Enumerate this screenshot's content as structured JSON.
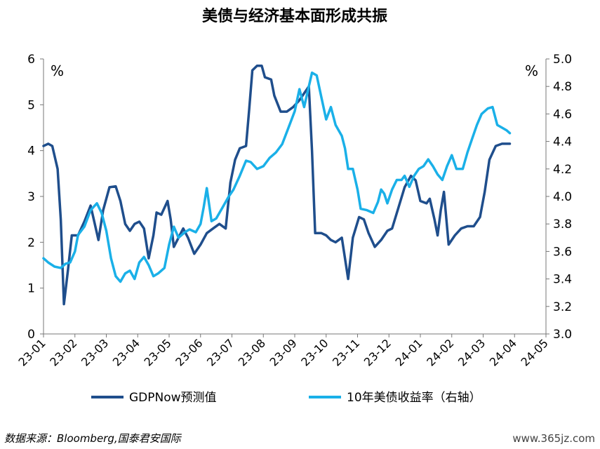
{
  "chart_data": {
    "type": "line",
    "title": "美债与经济基本面形成共振",
    "unit_left": "%",
    "unit_right": "%",
    "y_left_range": [
      0,
      6
    ],
    "y_left_ticks": [
      "0",
      "1",
      "2",
      "3",
      "4",
      "5",
      "6"
    ],
    "y_right_range": [
      3.0,
      5.0
    ],
    "y_right_ticks": [
      "3.0",
      "3.2",
      "3.4",
      "3.6",
      "3.8",
      "4.0",
      "4.2",
      "4.4",
      "4.6",
      "4.8",
      "5.0"
    ],
    "x_range": [
      0,
      16
    ],
    "x_tick_labels": [
      "23-01",
      "23-02",
      "23-03",
      "23-04",
      "23-05",
      "23-06",
      "23-07",
      "23-08",
      "23-09",
      "23-10",
      "23-11",
      "23-12",
      "24-01",
      "24-02",
      "24-03",
      "24-04",
      "24-05"
    ],
    "grid": false,
    "legend_position": "bottom",
    "series": [
      {
        "name": "GDPNow预测值",
        "axis": "left",
        "color": "#1f4e8c",
        "points": [
          [
            0,
            4.1
          ],
          [
            0.15,
            4.15
          ],
          [
            0.28,
            4.1
          ],
          [
            0.45,
            3.6
          ],
          [
            0.55,
            2.5
          ],
          [
            0.65,
            0.65
          ],
          [
            0.78,
            1.4
          ],
          [
            0.9,
            2.15
          ],
          [
            1.1,
            2.15
          ],
          [
            1.3,
            2.45
          ],
          [
            1.5,
            2.8
          ],
          [
            1.6,
            2.5
          ],
          [
            1.75,
            2.05
          ],
          [
            1.9,
            2.7
          ],
          [
            2.1,
            3.2
          ],
          [
            2.3,
            3.22
          ],
          [
            2.45,
            2.9
          ],
          [
            2.6,
            2.4
          ],
          [
            2.75,
            2.25
          ],
          [
            2.9,
            2.4
          ],
          [
            3.05,
            2.45
          ],
          [
            3.2,
            2.3
          ],
          [
            3.35,
            1.65
          ],
          [
            3.5,
            2.15
          ],
          [
            3.6,
            2.65
          ],
          [
            3.75,
            2.6
          ],
          [
            3.95,
            2.9
          ],
          [
            4.05,
            2.5
          ],
          [
            4.15,
            1.9
          ],
          [
            4.3,
            2.1
          ],
          [
            4.45,
            2.3
          ],
          [
            4.6,
            2.1
          ],
          [
            4.8,
            1.75
          ],
          [
            5.0,
            1.95
          ],
          [
            5.2,
            2.2
          ],
          [
            5.4,
            2.3
          ],
          [
            5.6,
            2.4
          ],
          [
            5.8,
            2.3
          ],
          [
            5.95,
            3.3
          ],
          [
            6.1,
            3.8
          ],
          [
            6.25,
            4.05
          ],
          [
            6.45,
            4.1
          ],
          [
            6.55,
            4.9
          ],
          [
            6.65,
            5.75
          ],
          [
            6.8,
            5.85
          ],
          [
            6.95,
            5.85
          ],
          [
            7.05,
            5.6
          ],
          [
            7.25,
            5.55
          ],
          [
            7.35,
            5.2
          ],
          [
            7.55,
            4.85
          ],
          [
            7.75,
            4.85
          ],
          [
            7.95,
            4.95
          ],
          [
            8.15,
            5.1
          ],
          [
            8.3,
            5.25
          ],
          [
            8.45,
            5.4
          ],
          [
            8.55,
            4.0
          ],
          [
            8.65,
            2.2
          ],
          [
            8.85,
            2.2
          ],
          [
            9.0,
            2.15
          ],
          [
            9.15,
            2.05
          ],
          [
            9.3,
            2.0
          ],
          [
            9.5,
            2.1
          ],
          [
            9.6,
            1.65
          ],
          [
            9.7,
            1.2
          ],
          [
            9.85,
            2.1
          ],
          [
            10.05,
            2.55
          ],
          [
            10.2,
            2.5
          ],
          [
            10.35,
            2.2
          ],
          [
            10.55,
            1.9
          ],
          [
            10.75,
            2.05
          ],
          [
            10.95,
            2.25
          ],
          [
            11.1,
            2.3
          ],
          [
            11.3,
            2.75
          ],
          [
            11.5,
            3.2
          ],
          [
            11.7,
            3.45
          ],
          [
            11.85,
            3.35
          ],
          [
            12.0,
            2.9
          ],
          [
            12.2,
            2.85
          ],
          [
            12.3,
            2.95
          ],
          [
            12.45,
            2.5
          ],
          [
            12.55,
            2.15
          ],
          [
            12.65,
            2.7
          ],
          [
            12.75,
            3.1
          ],
          [
            12.9,
            1.95
          ],
          [
            13.1,
            2.15
          ],
          [
            13.3,
            2.3
          ],
          [
            13.5,
            2.35
          ],
          [
            13.7,
            2.35
          ],
          [
            13.9,
            2.55
          ],
          [
            14.05,
            3.1
          ],
          [
            14.2,
            3.8
          ],
          [
            14.4,
            4.1
          ],
          [
            14.6,
            4.15
          ],
          [
            14.75,
            4.15
          ],
          [
            14.85,
            4.15
          ]
        ]
      },
      {
        "name": "10年美债收益率（右轴）",
        "axis": "right",
        "color": "#1ab0e8",
        "points": [
          [
            0,
            3.55
          ],
          [
            0.15,
            3.52
          ],
          [
            0.35,
            3.49
          ],
          [
            0.55,
            3.48
          ],
          [
            0.7,
            3.51
          ],
          [
            0.85,
            3.52
          ],
          [
            1.0,
            3.6
          ],
          [
            1.1,
            3.72
          ],
          [
            1.3,
            3.78
          ],
          [
            1.5,
            3.9
          ],
          [
            1.7,
            3.95
          ],
          [
            1.85,
            3.88
          ],
          [
            2.0,
            3.75
          ],
          [
            2.15,
            3.55
          ],
          [
            2.3,
            3.42
          ],
          [
            2.45,
            3.38
          ],
          [
            2.6,
            3.44
          ],
          [
            2.75,
            3.46
          ],
          [
            2.9,
            3.4
          ],
          [
            3.05,
            3.52
          ],
          [
            3.2,
            3.56
          ],
          [
            3.35,
            3.5
          ],
          [
            3.5,
            3.42
          ],
          [
            3.65,
            3.44
          ],
          [
            3.85,
            3.48
          ],
          [
            4.0,
            3.65
          ],
          [
            4.15,
            3.78
          ],
          [
            4.3,
            3.7
          ],
          [
            4.5,
            3.74
          ],
          [
            4.65,
            3.76
          ],
          [
            4.85,
            3.74
          ],
          [
            5.0,
            3.8
          ],
          [
            5.1,
            3.92
          ],
          [
            5.2,
            4.06
          ],
          [
            5.35,
            3.82
          ],
          [
            5.5,
            3.84
          ],
          [
            5.7,
            3.92
          ],
          [
            5.9,
            4.0
          ],
          [
            6.05,
            4.05
          ],
          [
            6.25,
            4.15
          ],
          [
            6.45,
            4.26
          ],
          [
            6.6,
            4.25
          ],
          [
            6.8,
            4.2
          ],
          [
            7.0,
            4.22
          ],
          [
            7.2,
            4.28
          ],
          [
            7.4,
            4.32
          ],
          [
            7.6,
            4.38
          ],
          [
            7.8,
            4.5
          ],
          [
            8.0,
            4.62
          ],
          [
            8.15,
            4.78
          ],
          [
            8.3,
            4.65
          ],
          [
            8.45,
            4.8
          ],
          [
            8.55,
            4.9
          ],
          [
            8.7,
            4.88
          ],
          [
            8.85,
            4.72
          ],
          [
            9.0,
            4.56
          ],
          [
            9.15,
            4.65
          ],
          [
            9.3,
            4.52
          ],
          [
            9.5,
            4.44
          ],
          [
            9.6,
            4.35
          ],
          [
            9.7,
            4.2
          ],
          [
            9.85,
            4.2
          ],
          [
            10.0,
            4.05
          ],
          [
            10.1,
            3.91
          ],
          [
            10.3,
            3.9
          ],
          [
            10.5,
            3.88
          ],
          [
            10.65,
            3.96
          ],
          [
            10.75,
            4.05
          ],
          [
            10.85,
            4.02
          ],
          [
            10.95,
            3.95
          ],
          [
            11.1,
            4.05
          ],
          [
            11.25,
            4.12
          ],
          [
            11.4,
            4.12
          ],
          [
            11.5,
            4.15
          ],
          [
            11.65,
            4.07
          ],
          [
            11.8,
            4.15
          ],
          [
            11.95,
            4.2
          ],
          [
            12.1,
            4.22
          ],
          [
            12.25,
            4.27
          ],
          [
            12.4,
            4.22
          ],
          [
            12.55,
            4.16
          ],
          [
            12.7,
            4.12
          ],
          [
            12.85,
            4.22
          ],
          [
            13.0,
            4.3
          ],
          [
            13.15,
            4.2
          ],
          [
            13.35,
            4.2
          ],
          [
            13.5,
            4.32
          ],
          [
            13.65,
            4.42
          ],
          [
            13.8,
            4.52
          ],
          [
            13.95,
            4.6
          ],
          [
            14.15,
            4.64
          ],
          [
            14.3,
            4.65
          ],
          [
            14.45,
            4.52
          ],
          [
            14.6,
            4.5
          ],
          [
            14.75,
            4.48
          ],
          [
            14.85,
            4.46
          ]
        ]
      }
    ]
  },
  "footer": {
    "source": "数据来源：Bloomberg,国泰君安国际",
    "watermark": "www.365jz.com"
  }
}
